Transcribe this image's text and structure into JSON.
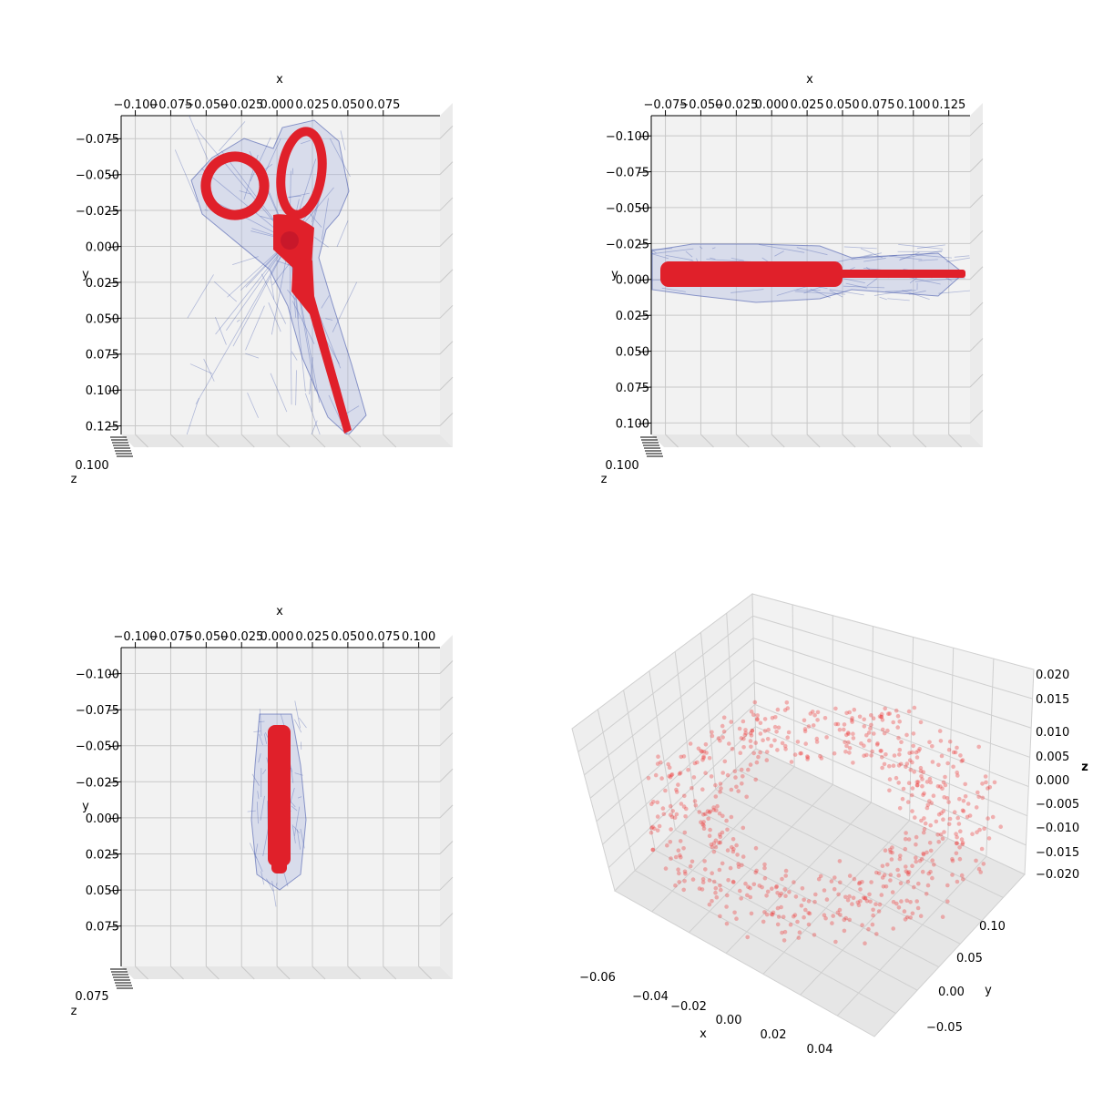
{
  "chart_data": [
    {
      "type": "scatter",
      "view": "top-down 3D wireframe + surface",
      "xlabel": "x",
      "ylabel": "y",
      "zlabel": "z",
      "xticks": [
        -0.1,
        -0.075,
        -0.05,
        -0.025,
        0.0,
        0.025,
        0.05,
        0.075
      ],
      "xtick_labels": [
        "−0.100",
        "−0.075",
        "−0.050",
        "−0.025",
        "0.000",
        "0.025",
        "0.050",
        "0.075"
      ],
      "yticks": [
        -0.075,
        -0.05,
        -0.025,
        0.0,
        0.025,
        0.05,
        0.075,
        0.1,
        0.125
      ],
      "ytick_labels": [
        "−0.075",
        "−0.050",
        "−0.025",
        "0.000",
        "0.025",
        "0.050",
        "0.075",
        "0.100",
        "0.125"
      ],
      "xlim": [
        -0.11,
        0.115
      ],
      "ylim": [
        -0.091,
        0.131
      ],
      "object": "scissors",
      "shape": {
        "ring_1": {
          "cx": -0.043,
          "cy": -0.043,
          "rx": 0.023,
          "ry": 0.027
        },
        "ring_2": {
          "cx": 0.012,
          "cy": -0.062,
          "rx": 0.012,
          "ry": 0.031
        },
        "pivot": {
          "x": 0.002,
          "y": 0.0
        },
        "blade_tip": {
          "x": 0.038,
          "y": 0.131
        }
      },
      "series": [
        {
          "name": "",
          "values": []
        }
      ]
    },
    {
      "type": "scatter",
      "view": "top-down 3D wireframe + surface",
      "xlabel": "x",
      "ylabel": "y",
      "zlabel": "z",
      "xticks": [
        -0.075,
        -0.05,
        -0.025,
        0.0,
        0.025,
        0.05,
        0.075,
        0.1,
        0.125
      ],
      "xtick_labels": [
        "−0.075",
        "−0.050",
        "−0.025",
        "0.000",
        "0.025",
        "0.050",
        "0.075",
        "0.100",
        "0.125"
      ],
      "yticks": [
        -0.1,
        -0.075,
        -0.05,
        -0.025,
        0.0,
        0.025,
        0.05,
        0.075,
        0.1
      ],
      "ytick_labels": [
        "−0.100",
        "−0.075",
        "−0.050",
        "−0.025",
        "0.000",
        "0.025",
        "0.050",
        "0.075",
        "0.100"
      ],
      "xlim": [
        -0.085,
        0.14
      ],
      "ylim": [
        -0.114,
        0.108
      ],
      "object": "screwdriver",
      "shape": {
        "handle_x": [
          -0.072,
          0.055
        ],
        "shaft_x": [
          0.055,
          0.128
        ],
        "y": 0.0,
        "handle_halfwidth": 0.009
      },
      "series": [
        {
          "name": "",
          "values": []
        }
      ]
    },
    {
      "type": "scatter",
      "view": "top-down 3D wireframe + surface",
      "xlabel": "x",
      "ylabel": "y",
      "zlabel": "z",
      "xticks": [
        -0.1,
        -0.075,
        -0.05,
        -0.025,
        0.0,
        0.025,
        0.05,
        0.075,
        0.1
      ],
      "xtick_labels": [
        "−0.100",
        "−0.075",
        "−0.050",
        "−0.025",
        "0.000",
        "0.025",
        "0.050",
        "0.075",
        "0.100"
      ],
      "yticks": [
        -0.1,
        -0.075,
        -0.05,
        -0.025,
        0.0,
        0.025,
        0.05,
        0.075
      ],
      "ytick_labels": [
        "−0.100",
        "−0.075",
        "−0.050",
        "−0.025",
        "0.000",
        "0.025",
        "0.050",
        "0.075"
      ],
      "xlim": [
        -0.11,
        0.115
      ],
      "ylim": [
        -0.118,
        0.103
      ],
      "object": "bottle",
      "shape": {
        "x": 0.0,
        "y_range": [
          -0.05,
          0.04
        ],
        "halfwidth": 0.007
      },
      "series": [
        {
          "name": "",
          "values": []
        }
      ]
    },
    {
      "type": "scatter",
      "view": "3D perspective point cloud",
      "xlabel": "x",
      "ylabel": "y",
      "zlabel": "z",
      "xtick_labels": [
        "−0.06",
        "−0.04",
        "−0.02",
        "0.00",
        "0.02",
        "0.04"
      ],
      "ytick_labels": [
        "−0.05",
        "0.00",
        "0.05",
        "0.10"
      ],
      "ztick_labels": [
        "−0.020",
        "−0.015",
        "−0.010",
        "−0.005",
        "0.000",
        "0.005",
        "0.010",
        "0.015",
        "0.020"
      ],
      "xlim": [
        -0.068,
        0.05
      ],
      "ylim": [
        -0.075,
        0.125
      ],
      "zlim": [
        -0.021,
        0.021
      ],
      "marker_color": "#ee3333",
      "point_count": 700
    }
  ],
  "colors": {
    "pane": "#f2f2f2",
    "grid": "#c8c8c8",
    "wireframe": "#3a4fa8",
    "wireframe_fill": "#aab5e0",
    "surface": "#e0202a",
    "scatter": "#ee3333"
  }
}
